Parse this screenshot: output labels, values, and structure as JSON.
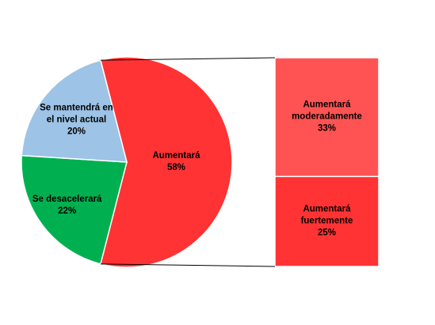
{
  "chart_data": {
    "type": "bar-of-pie",
    "categories": [
      "Aumentará",
      "Se desacelerará",
      "Se mantendrá en el nivel actual"
    ],
    "values": [
      58,
      22,
      20
    ],
    "value_labels": [
      "58%",
      "22%",
      "20%"
    ],
    "colors": [
      "#ff3333",
      "#00b050",
      "#9dc3e6"
    ],
    "breakdown": {
      "categories": [
        "Aumentará moderadamente",
        "Aumentará fuertemente"
      ],
      "values": [
        33,
        25
      ],
      "value_labels": [
        "33%",
        "25%"
      ],
      "colors": [
        "#ff5353",
        "#ff3333"
      ]
    }
  }
}
